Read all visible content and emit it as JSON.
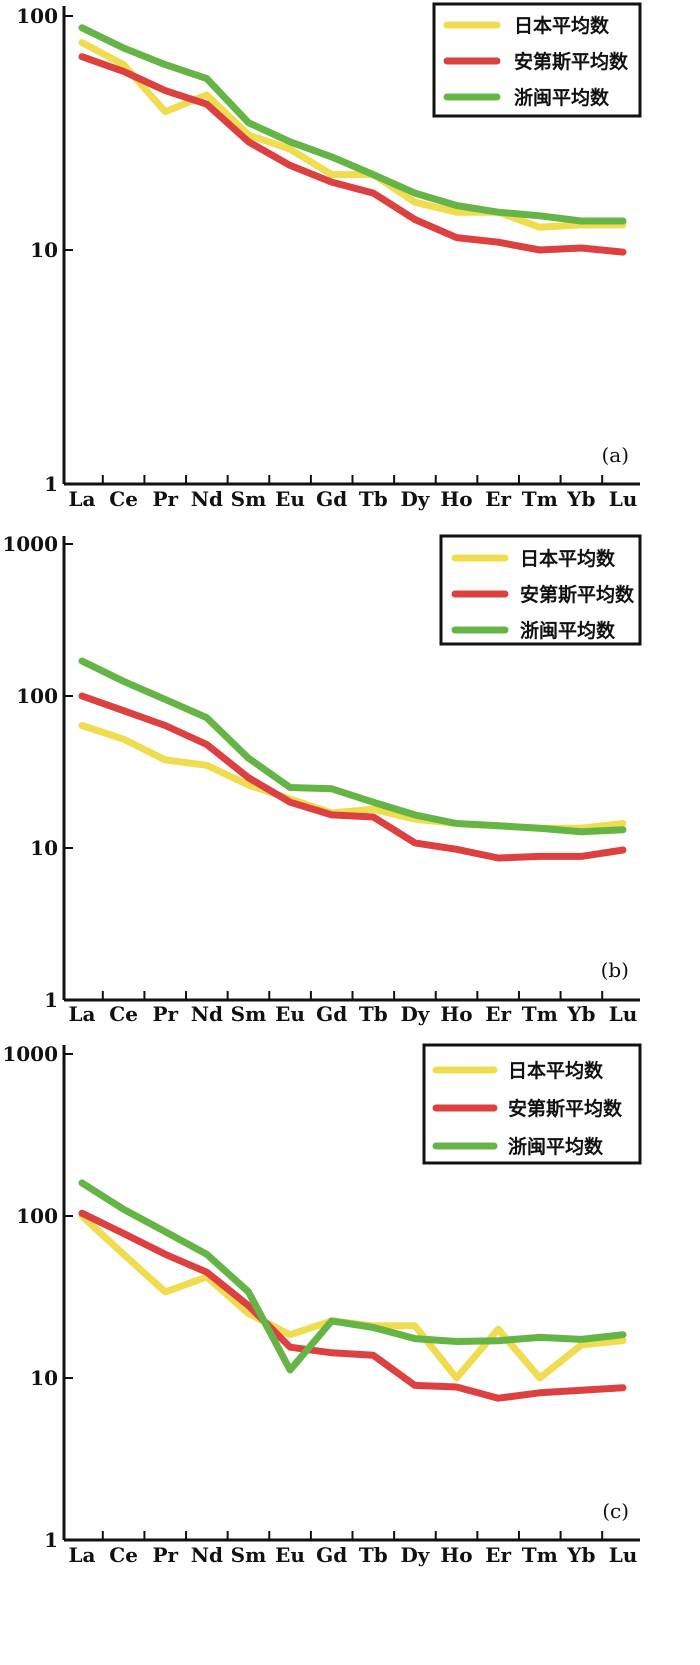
{
  "chart_data": [
    {
      "type": "line",
      "panel_label": "(a)",
      "yscale": "log",
      "ylim": [
        1,
        100
      ],
      "yticks": [
        "1",
        "10",
        "100"
      ],
      "categories": [
        "La",
        "Ce",
        "Pr",
        "Nd",
        "Sm",
        "Eu",
        "Gd",
        "Tb",
        "Dy",
        "Ho",
        "Er",
        "Tm",
        "Yb",
        "Lu"
      ],
      "legend_position": "top-right",
      "series": [
        {
          "name": "日本平均数",
          "color": "#f0dc50",
          "values": [
            77,
            62,
            39,
            46,
            31,
            27,
            21,
            21,
            16,
            14.5,
            14.5,
            12.5,
            12.8,
            12.8
          ]
        },
        {
          "name": "安第斯平均数",
          "color": "#dc4040",
          "values": [
            67,
            58,
            48,
            42,
            29,
            23,
            19.5,
            17.5,
            13.5,
            11.3,
            10.8,
            10,
            10.2,
            9.8
          ]
        },
        {
          "name": "浙闽平均数",
          "color": "#64b446",
          "values": [
            89,
            73,
            62,
            54,
            35,
            29,
            25,
            21,
            17.5,
            15.5,
            14.5,
            14,
            13.3,
            13.3
          ]
        }
      ]
    },
    {
      "type": "line",
      "panel_label": "(b)",
      "yscale": "log",
      "ylim": [
        1,
        1000
      ],
      "yticks": [
        "1",
        "10",
        "100",
        "1000"
      ],
      "categories": [
        "La",
        "Ce",
        "Pr",
        "Nd",
        "Sm",
        "Eu",
        "Gd",
        "Tb",
        "Dy",
        "Ho",
        "Er",
        "Tm",
        "Yb",
        "Lu"
      ],
      "legend_position": "top-right",
      "series": [
        {
          "name": "日本平均数",
          "color": "#f0dc50",
          "values": [
            64,
            52,
            38,
            35,
            26,
            21,
            17,
            18,
            15.5,
            14.5,
            14,
            13.5,
            13.5,
            14.5
          ]
        },
        {
          "name": "安第斯平均数",
          "color": "#dc4040",
          "values": [
            100,
            80,
            64,
            48,
            29,
            20,
            16.5,
            16,
            10.8,
            9.8,
            8.6,
            8.8,
            8.8,
            9.7
          ]
        },
        {
          "name": "浙闽平均数",
          "color": "#64b446",
          "values": [
            170,
            125,
            95,
            72,
            39,
            25,
            24.5,
            20,
            16.5,
            14.5,
            14,
            13.5,
            12.8,
            13.2
          ]
        }
      ]
    },
    {
      "type": "line",
      "panel_label": "(c)",
      "yscale": "log",
      "ylim": [
        1,
        1000
      ],
      "yticks": [
        "1",
        "10",
        "100",
        "1000"
      ],
      "categories": [
        "La",
        "Ce",
        "Pr",
        "Nd",
        "Sm",
        "Eu",
        "Gd",
        "Tb",
        "Dy",
        "Ho",
        "Er",
        "Tm",
        "Yb",
        "Lu"
      ],
      "legend_position": "top-right",
      "series": [
        {
          "name": "日本平均数",
          "color": "#f0dc50",
          "values": [
            100,
            58,
            34,
            42,
            25,
            18.5,
            22.5,
            21,
            21,
            10,
            20,
            10,
            16,
            17
          ]
        },
        {
          "name": "安第斯平均数",
          "color": "#dc4040",
          "values": [
            104,
            78,
            58,
            45,
            28,
            15.5,
            14.3,
            13.8,
            9,
            8.8,
            7.5,
            8.1,
            8.4,
            8.7
          ]
        },
        {
          "name": "浙闽平均数",
          "color": "#64b446",
          "values": [
            160,
            110,
            80,
            58,
            34,
            11.2,
            22.5,
            20.5,
            17.5,
            16.8,
            17,
            17.8,
            17.3,
            18.5
          ]
        }
      ]
    }
  ]
}
